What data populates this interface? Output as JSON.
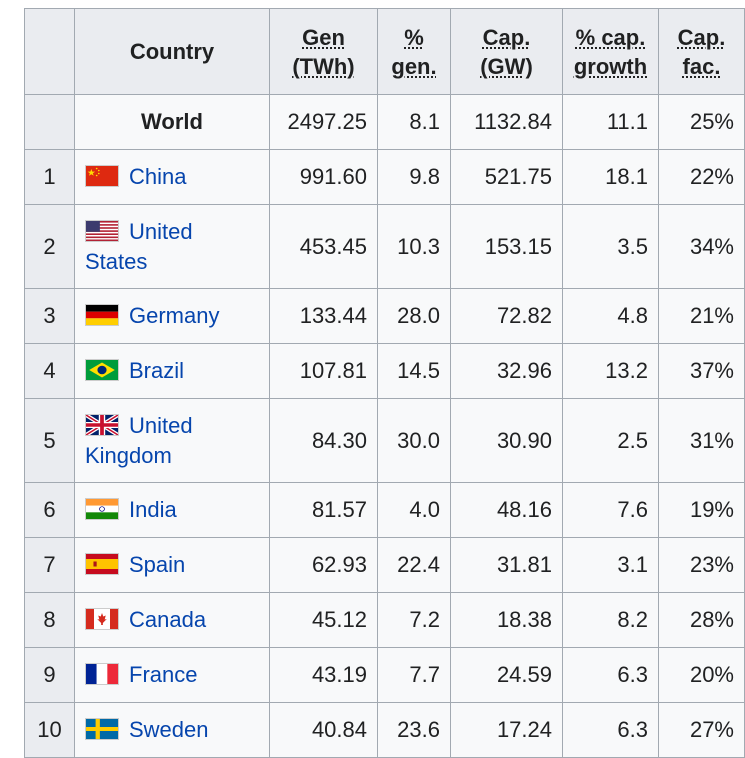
{
  "table": {
    "headers": {
      "country": "Country",
      "gen_line1": "Gen",
      "gen_line2": "(TWh)",
      "pctgen_line1": "%",
      "pctgen_line2": "gen.",
      "cap_line1": "Cap.",
      "cap_line2": "(GW)",
      "capgrowth_line1": "% cap.",
      "capgrowth_line2": "growth",
      "capfac_line1": "Cap.",
      "capfac_line2": "fac."
    },
    "world": {
      "label": "World",
      "gen": "2497.25",
      "pct_gen": "8.1",
      "cap": "1132.84",
      "cap_growth": "11.1",
      "cap_fac": "25%"
    },
    "rows": [
      {
        "rank": "1",
        "country": "China",
        "flag": "china-flag",
        "gen": "991.60",
        "pct_gen": "9.8",
        "cap": "521.75",
        "cap_growth": "18.1",
        "cap_fac": "22%"
      },
      {
        "rank": "2",
        "country_line1": "United",
        "country_line2": "States",
        "flag": "usa-flag",
        "gen": "453.45",
        "pct_gen": "10.3",
        "cap": "153.15",
        "cap_growth": "3.5",
        "cap_fac": "34%"
      },
      {
        "rank": "3",
        "country": "Germany",
        "flag": "germany-flag",
        "gen": "133.44",
        "pct_gen": "28.0",
        "cap": "72.82",
        "cap_growth": "4.8",
        "cap_fac": "21%"
      },
      {
        "rank": "4",
        "country": "Brazil",
        "flag": "brazil-flag",
        "gen": "107.81",
        "pct_gen": "14.5",
        "cap": "32.96",
        "cap_growth": "13.2",
        "cap_fac": "37%"
      },
      {
        "rank": "5",
        "country_line1": "United",
        "country_line2": "Kingdom",
        "flag": "uk-flag",
        "gen": "84.30",
        "pct_gen": "30.0",
        "cap": "30.90",
        "cap_growth": "2.5",
        "cap_fac": "31%"
      },
      {
        "rank": "6",
        "country": "India",
        "flag": "india-flag",
        "gen": "81.57",
        "pct_gen": "4.0",
        "cap": "48.16",
        "cap_growth": "7.6",
        "cap_fac": "19%"
      },
      {
        "rank": "7",
        "country": "Spain",
        "flag": "spain-flag",
        "gen": "62.93",
        "pct_gen": "22.4",
        "cap": "31.81",
        "cap_growth": "3.1",
        "cap_fac": "23%"
      },
      {
        "rank": "8",
        "country": "Canada",
        "flag": "canada-flag",
        "gen": "45.12",
        "pct_gen": "7.2",
        "cap": "18.38",
        "cap_growth": "8.2",
        "cap_fac": "28%"
      },
      {
        "rank": "9",
        "country": "France",
        "flag": "france-flag",
        "gen": "43.19",
        "pct_gen": "7.7",
        "cap": "24.59",
        "cap_growth": "6.3",
        "cap_fac": "20%"
      },
      {
        "rank": "10",
        "country": "Sweden",
        "flag": "sweden-flag",
        "gen": "40.84",
        "pct_gen": "23.6",
        "cap": "17.24",
        "cap_growth": "6.3",
        "cap_fac": "27%"
      }
    ]
  }
}
